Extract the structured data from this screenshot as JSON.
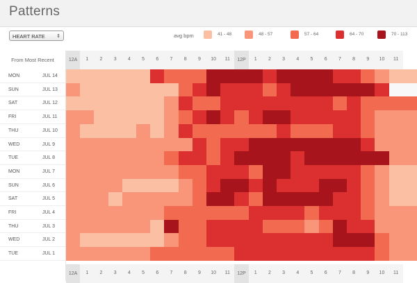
{
  "app": {
    "title": "Patterns"
  },
  "metric_select": {
    "value": "HEART RATE",
    "icon": "chevron-updown-icon"
  },
  "legend": {
    "label": "avg bpm",
    "items": [
      {
        "range": "41 - 48",
        "color": "#fbbfa3"
      },
      {
        "range": "48 - 57",
        "color": "#f9967a"
      },
      {
        "range": "57 - 64",
        "color": "#f26a4f"
      },
      {
        "range": "64 - 70",
        "color": "#dc3030"
      },
      {
        "range": "70 - 113",
        "color": "#a8141b"
      }
    ]
  },
  "table": {
    "sort_label": "From Most Recent",
    "hours": [
      "12A",
      "1",
      "2",
      "3",
      "4",
      "5",
      "6",
      "7",
      "8",
      "9",
      "10",
      "11",
      "12P",
      "1",
      "2",
      "3",
      "4",
      "5",
      "6",
      "7",
      "8",
      "9",
      "10",
      "11"
    ],
    "rows": [
      {
        "day": "MON",
        "date": "JUL 14",
        "levels": [
          0,
          0,
          0,
          0,
          0,
          0,
          3,
          2,
          2,
          2,
          4,
          4,
          4,
          4,
          3,
          4,
          4,
          4,
          4,
          3,
          3,
          2,
          1,
          0
        ]
      },
      {
        "day": "SUN",
        "date": "JUL 13",
        "levels": [
          1,
          0,
          0,
          0,
          0,
          0,
          0,
          0,
          2,
          3,
          4,
          3,
          3,
          3,
          2,
          3,
          4,
          4,
          4,
          4,
          4,
          4,
          3,
          -1
        ]
      },
      {
        "day": "SAT",
        "date": "JUL 12",
        "levels": [
          0,
          0,
          0,
          0,
          0,
          0,
          0,
          1,
          3,
          2,
          2,
          3,
          3,
          3,
          3,
          3,
          3,
          3,
          3,
          2,
          3,
          2,
          2,
          2
        ]
      },
      {
        "day": "FRI",
        "date": "JUL 11",
        "levels": [
          1,
          1,
          0,
          0,
          0,
          0,
          0,
          1,
          2,
          3,
          4,
          3,
          2,
          3,
          4,
          4,
          3,
          3,
          3,
          3,
          3,
          2,
          1,
          1
        ]
      },
      {
        "day": "THU",
        "date": "JUL 10",
        "levels": [
          1,
          0,
          0,
          0,
          0,
          1,
          0,
          1,
          3,
          2,
          2,
          2,
          2,
          2,
          2,
          3,
          2,
          2,
          2,
          3,
          3,
          2,
          1,
          1
        ]
      },
      {
        "day": "WED",
        "date": "JUL 9",
        "levels": [
          1,
          1,
          1,
          1,
          1,
          1,
          1,
          1,
          1,
          3,
          2,
          3,
          3,
          4,
          4,
          4,
          4,
          4,
          4,
          4,
          4,
          3,
          1,
          1
        ]
      },
      {
        "day": "TUE",
        "date": "JUL 8",
        "levels": [
          1,
          1,
          1,
          1,
          1,
          1,
          1,
          2,
          3,
          3,
          2,
          3,
          4,
          4,
          4,
          4,
          3,
          4,
          4,
          4,
          4,
          4,
          4,
          1
        ]
      },
      {
        "day": "MON",
        "date": "JUL 7",
        "levels": [
          1,
          1,
          1,
          1,
          1,
          1,
          1,
          1,
          2,
          2,
          3,
          3,
          3,
          2,
          4,
          4,
          3,
          3,
          3,
          3,
          3,
          2,
          1,
          0
        ]
      },
      {
        "day": "SUN",
        "date": "JUL 6",
        "levels": [
          1,
          1,
          1,
          1,
          0,
          0,
          0,
          0,
          1,
          2,
          3,
          4,
          4,
          3,
          4,
          3,
          3,
          3,
          4,
          4,
          3,
          2,
          1,
          0
        ]
      },
      {
        "day": "SAT",
        "date": "JUL 5",
        "levels": [
          1,
          1,
          1,
          0,
          1,
          1,
          1,
          1,
          1,
          2,
          4,
          4,
          3,
          2,
          4,
          4,
          4,
          4,
          4,
          3,
          3,
          2,
          1,
          0
        ]
      },
      {
        "day": "FRI",
        "date": "JUL 4",
        "levels": [
          1,
          1,
          1,
          1,
          1,
          1,
          1,
          2,
          2,
          2,
          2,
          2,
          2,
          3,
          3,
          3,
          3,
          2,
          3,
          3,
          3,
          2,
          1,
          1
        ]
      },
      {
        "day": "THU",
        "date": "JUL 3",
        "levels": [
          1,
          1,
          1,
          1,
          1,
          1,
          0,
          4,
          2,
          2,
          3,
          3,
          3,
          3,
          2,
          2,
          2,
          1,
          2,
          4,
          3,
          3,
          1,
          1
        ]
      },
      {
        "day": "WED",
        "date": "JUL 2",
        "levels": [
          1,
          0,
          0,
          0,
          0,
          0,
          0,
          1,
          2,
          2,
          3,
          3,
          3,
          3,
          3,
          3,
          3,
          3,
          3,
          4,
          4,
          4,
          2,
          1
        ]
      },
      {
        "day": "TUE",
        "date": "JUL 1",
        "levels": [
          1,
          1,
          1,
          1,
          1,
          1,
          2,
          2,
          2,
          2,
          2,
          2,
          3,
          3,
          3,
          3,
          3,
          3,
          3,
          3,
          3,
          3,
          2,
          1
        ]
      }
    ]
  },
  "colors": {
    "empty": "#f8f8f8",
    "levels": [
      "#fbbfa3",
      "#f9967a",
      "#f26a4f",
      "#dc3030",
      "#a8141b"
    ]
  }
}
